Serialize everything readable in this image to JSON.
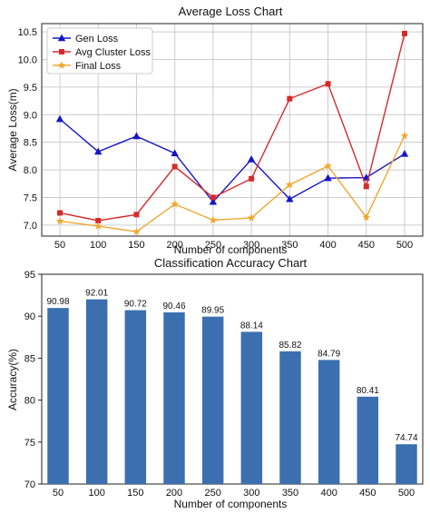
{
  "chart_data": [
    {
      "type": "line",
      "title": "Average Loss Chart",
      "xlabel": "Number of components",
      "ylabel": "Average Loss(m)",
      "categories": [
        "50",
        "100",
        "150",
        "200",
        "250",
        "300",
        "350",
        "400",
        "450",
        "500"
      ],
      "yticks": [
        "7.0",
        "7.5",
        "8.0",
        "8.5",
        "9.0",
        "9.5",
        "10.0",
        "10.5"
      ],
      "ylim": [
        6.8,
        10.65
      ],
      "grid": true,
      "legend_position": "top-left",
      "series": [
        {
          "name": "Gen Loss",
          "color": "#1515c8",
          "marker": "triangle",
          "values": [
            8.92,
            8.33,
            8.61,
            8.3,
            7.42,
            8.19,
            7.47,
            7.85,
            7.86,
            8.29
          ]
        },
        {
          "name": "Avg Cluster Loss",
          "color": "#d62a2a",
          "marker": "square",
          "values": [
            7.22,
            7.08,
            7.19,
            8.06,
            7.5,
            7.84,
            9.29,
            9.56,
            7.7,
            10.47
          ]
        },
        {
          "name": "Final Loss",
          "color": "#f0a830",
          "marker": "star",
          "values": [
            7.07,
            6.98,
            6.88,
            7.38,
            7.09,
            7.13,
            7.73,
            8.07,
            7.14,
            8.62
          ]
        }
      ]
    },
    {
      "type": "bar",
      "title": "Classification Accuracy Chart",
      "xlabel": "Number of components",
      "ylabel": "Accuracy(%)",
      "categories": [
        "50",
        "100",
        "150",
        "200",
        "250",
        "300",
        "350",
        "400",
        "450",
        "500"
      ],
      "values": [
        90.98,
        92.01,
        90.72,
        90.46,
        89.95,
        88.14,
        85.82,
        84.79,
        80.41,
        74.74
      ],
      "value_labels": [
        "90.98",
        "92.01",
        "90.72",
        "90.46",
        "89.95",
        "88.14",
        "85.82",
        "84.79",
        "80.41",
        "74.74"
      ],
      "yticks": [
        "70",
        "75",
        "80",
        "85",
        "90",
        "95"
      ],
      "ylim": [
        70,
        95
      ],
      "bar_color": "#3b6fb0",
      "grid": false
    }
  ]
}
